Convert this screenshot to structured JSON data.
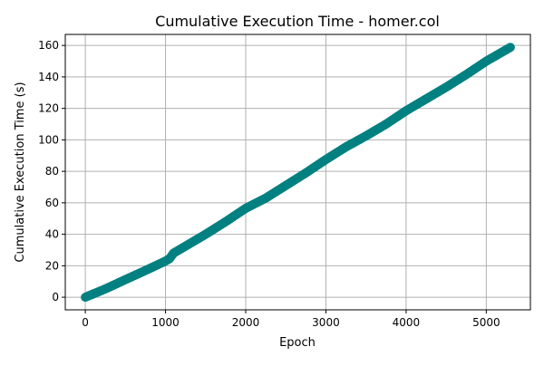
{
  "chart_data": {
    "type": "scatter",
    "title": "Cumulative Execution Time - homer.col",
    "xlabel": "Epoch",
    "ylabel": "Cumulative Execution Time (s)",
    "xlim": [
      -250,
      5550
    ],
    "ylim": [
      -8,
      167
    ],
    "xticks": [
      0,
      1000,
      2000,
      3000,
      4000,
      5000
    ],
    "yticks": [
      0,
      20,
      40,
      60,
      80,
      100,
      120,
      140,
      160
    ],
    "grid": true,
    "marker_color": "#008080",
    "points": [
      [
        0,
        0
      ],
      [
        250,
        5.3
      ],
      [
        500,
        11.2
      ],
      [
        750,
        17.0
      ],
      [
        1000,
        23.0
      ],
      [
        1050,
        24.5
      ],
      [
        1100,
        28.0
      ],
      [
        1250,
        32.5
      ],
      [
        1500,
        40.0
      ],
      [
        1750,
        48.0
      ],
      [
        2000,
        56.5
      ],
      [
        2250,
        63.0
      ],
      [
        2500,
        71.0
      ],
      [
        2750,
        79.0
      ],
      [
        3000,
        87.5
      ],
      [
        3250,
        95.5
      ],
      [
        3500,
        102.5
      ],
      [
        3750,
        110.0
      ],
      [
        4000,
        118.5
      ],
      [
        4250,
        126.0
      ],
      [
        4500,
        133.5
      ],
      [
        4750,
        141.5
      ],
      [
        5000,
        150.0
      ],
      [
        5300,
        158.8
      ]
    ]
  }
}
